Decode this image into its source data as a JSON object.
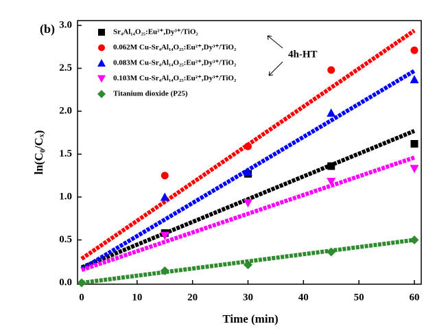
{
  "chart_data": {
    "type": "scatter",
    "panel_label": "(b)",
    "xlabel": "Time (min)",
    "ylabel": "ln(C₀/Cₓ)",
    "annotation": "4h-HT",
    "x": [
      0,
      15,
      30,
      45,
      60
    ],
    "fit_x": [
      0,
      60
    ],
    "series": [
      {
        "name": "Sr₄Al₁₄O₂₅:Eu²⁺,Dy³⁺/TiO₂",
        "color": "#000000",
        "marker": "square",
        "values": [
          null,
          0.58,
          1.27,
          1.36,
          1.62
        ],
        "fit_values": [
          0.18,
          1.77
        ]
      },
      {
        "name": "0.062M Cu-Sr₄Al₁₄O₂₅:Eu²⁺,Dy³⁺/TiO₂",
        "color": "#ff0000",
        "marker": "circle",
        "values": [
          null,
          1.25,
          1.59,
          2.48,
          2.71
        ],
        "fit_values": [
          0.28,
          2.94
        ]
      },
      {
        "name": "0.083M Cu-Sr₄Al₁₄O₂₅:Eu²⁺,Dy³⁺/TiO₂",
        "color": "#0000ff",
        "marker": "triangle-up",
        "values": [
          null,
          1.0,
          1.29,
          1.98,
          2.37
        ],
        "fit_values": [
          0.16,
          2.47
        ]
      },
      {
        "name": "0.103M Cu-Sr₄Al₁₄O₂₅:Eu²⁺,Dy³⁺/TiO₂",
        "color": "#ff00ff",
        "marker": "triangle-down",
        "values": [
          null,
          0.55,
          0.93,
          1.18,
          1.33
        ],
        "fit_values": [
          0.15,
          1.46
        ]
      },
      {
        "name": "Titanium dioxide (P25)",
        "color": "#2e8b2e",
        "marker": "diamond",
        "values": [
          0,
          0.14,
          0.21,
          0.36,
          0.5
        ],
        "fit_values": [
          0,
          0.5
        ]
      }
    ],
    "xlim": [
      -0.74,
      61.24
    ],
    "xticks": [
      0,
      10,
      20,
      30,
      40,
      50,
      60
    ],
    "ylim": [
      -0.016,
      3.056
    ],
    "yticks": [
      {
        "value": 0,
        "label": "0.0"
      },
      {
        "value": 0.5,
        "label": "0.5"
      },
      {
        "value": 1,
        "label": "1.0"
      },
      {
        "value": 1.5,
        "label": "1.5"
      },
      {
        "value": 2,
        "label": "2.0"
      },
      {
        "value": 2.5,
        "label": "2.5"
      },
      {
        "value": 3,
        "label": "3.0"
      }
    ]
  }
}
